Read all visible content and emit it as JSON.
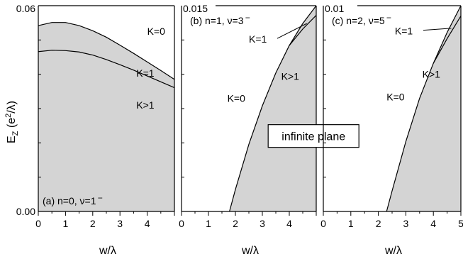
{
  "figure": {
    "ylabel_main": "E",
    "ylabel_sub": "Z",
    "ylabel_rest": " (e",
    "ylabel_sup": "2",
    "ylabel_end": "/λ)",
    "colors": {
      "fill": "#d4d4d4",
      "line": "#000000"
    }
  },
  "chart_data": [
    {
      "type": "area",
      "panel_label": "(a) n=0, ν=1",
      "panel_label_super": "−",
      "xlabel": "w/λ",
      "xlim": [
        0,
        5
      ],
      "ylim": [
        0,
        0.06
      ],
      "xticks": [
        "0",
        "1",
        "2",
        "3",
        "4"
      ],
      "yticks": [
        "0.00",
        "0.06"
      ],
      "curves": [
        {
          "x": [
            0,
            0.5,
            1,
            1.5,
            2,
            2.5,
            3,
            3.5,
            4,
            4.5,
            5
          ],
          "y": [
            0.0542,
            0.0551,
            0.0551,
            0.0542,
            0.0527,
            0.0508,
            0.0485,
            0.0461,
            0.0436,
            0.0411,
            0.0385
          ]
        },
        {
          "x": [
            0,
            0.5,
            1,
            1.5,
            2,
            2.5,
            3,
            3.5,
            4,
            4.5,
            5
          ],
          "y": [
            0.0466,
            0.047,
            0.0469,
            0.0465,
            0.0456,
            0.0443,
            0.0428,
            0.0412,
            0.0395,
            0.0378,
            0.0361
          ]
        }
      ],
      "curve_labels": [
        {
          "text": "K=0",
          "x": 4.0,
          "y": 0.0515
        },
        {
          "text": "K=1",
          "x": 3.6,
          "y": 0.0393
        },
        {
          "text": "K>1",
          "x": 3.6,
          "y": 0.03
        }
      ]
    },
    {
      "type": "area",
      "panel_label": "(b) n=1, ν=3",
      "panel_label_super": "−",
      "xlabel": "w/λ",
      "xlim": [
        0,
        5
      ],
      "ylim": [
        0,
        0.015
      ],
      "xticks": [
        "0",
        "1",
        "2",
        "3",
        "4"
      ],
      "yticks": [
        "0.015"
      ],
      "curves": [
        {
          "x": [
            1.78,
            2.0,
            2.5,
            3.0,
            3.5,
            4.0,
            4.5,
            5.0
          ],
          "y": [
            0.0,
            0.0016,
            0.0049,
            0.0077,
            0.0101,
            0.0121,
            0.0137,
            0.015
          ]
        },
        {
          "x": [
            4.0,
            4.5,
            5.0
          ],
          "y": [
            0.0121,
            0.0133,
            0.0143
          ]
        }
      ],
      "curve_labels": [
        {
          "text": "K=1",
          "x": 2.5,
          "y": 0.0123
        },
        {
          "text": "K>1",
          "x": 3.7,
          "y": 0.0096
        },
        {
          "text": "K=0",
          "x": 1.7,
          "y": 0.008
        }
      ],
      "annotations": [
        {
          "text": "infinite plane",
          "x": 4.9,
          "y": 0.0055
        }
      ]
    },
    {
      "type": "area",
      "panel_label": "(c) n=2, ν=5",
      "panel_label_super": "−",
      "xlabel": "w/λ",
      "xlim": [
        0,
        5
      ],
      "ylim": [
        0,
        0.01
      ],
      "xticks": [
        "0",
        "1",
        "2",
        "3",
        "4",
        "5"
      ],
      "yticks": [
        "0.01"
      ],
      "curves": [
        {
          "x": [
            2.3,
            2.5,
            3.0,
            3.5,
            4.0,
            4.5,
            5.0
          ],
          "y": [
            0.0,
            0.001,
            0.0034,
            0.0055,
            0.0072,
            0.0087,
            0.01
          ]
        },
        {
          "x": [
            4.0,
            4.5,
            5.0
          ],
          "y": [
            0.0072,
            0.0084,
            0.0095
          ]
        }
      ],
      "curve_labels": [
        {
          "text": "K=1",
          "x": 2.6,
          "y": 0.0086
        },
        {
          "text": "K>1",
          "x": 3.6,
          "y": 0.0065
        },
        {
          "text": "K=0",
          "x": 2.3,
          "y": 0.0054
        }
      ]
    }
  ]
}
